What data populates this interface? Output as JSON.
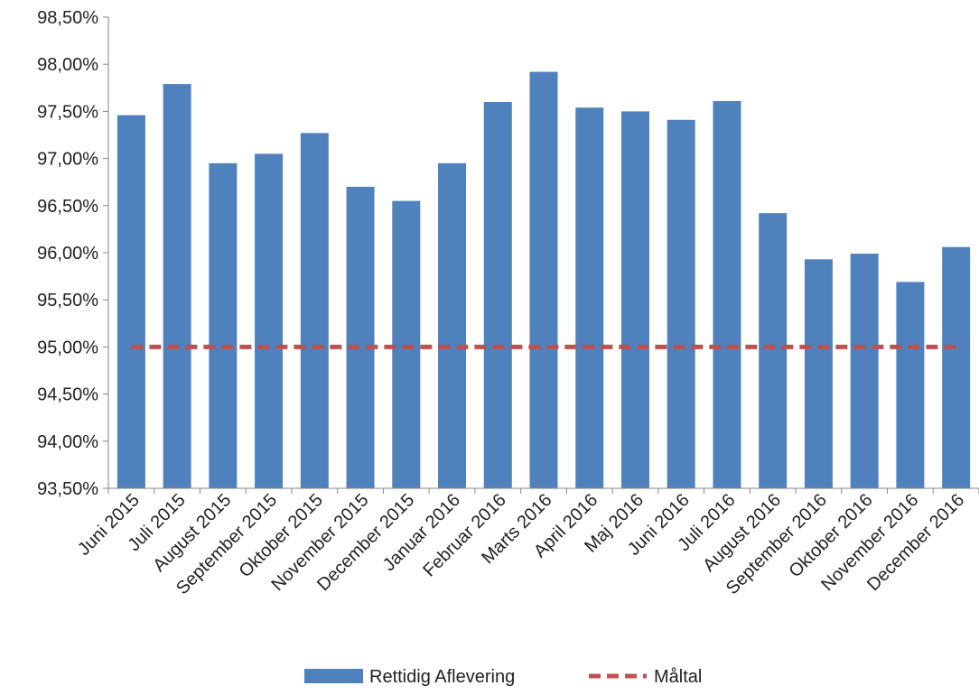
{
  "chart_data": {
    "type": "bar",
    "title": "",
    "xlabel": "",
    "ylabel": "",
    "ylim": [
      0.935,
      0.985
    ],
    "y_ticks": [
      "93,50%",
      "94,00%",
      "94,50%",
      "95,00%",
      "95,50%",
      "96,00%",
      "96,50%",
      "97,00%",
      "97,50%",
      "98,00%",
      "98,50%"
    ],
    "y_tick_values": [
      0.935,
      0.94,
      0.945,
      0.95,
      0.955,
      0.96,
      0.965,
      0.97,
      0.975,
      0.98,
      0.985
    ],
    "grid": false,
    "legend_position": "bottom",
    "categories": [
      "Juni 2015",
      "Juli 2015",
      "August 2015",
      "September 2015",
      "Oktober 2015",
      "November 2015",
      "December 2015",
      "Januar 2016",
      "Februar 2016",
      "Marts 2016",
      "April 2016",
      "Maj 2016",
      "Juni 2016",
      "Juli 2016",
      "August 2016",
      "September 2016",
      "Oktober 2016",
      "November 2016",
      "December 2016"
    ],
    "series": [
      {
        "name": "Rettidig Aflevering",
        "kind": "bar",
        "color": "#4f81bd",
        "values": [
          0.9746,
          0.9779,
          0.9695,
          0.9705,
          0.9727,
          0.967,
          0.9655,
          0.9695,
          0.976,
          0.9792,
          0.9754,
          0.975,
          0.9741,
          0.9761,
          0.9642,
          0.9593,
          0.9599,
          0.9569,
          0.9606
        ]
      },
      {
        "name": "Måltal",
        "kind": "dashed-line",
        "color": "#c0504d",
        "values": [
          0.95,
          0.95,
          0.95,
          0.95,
          0.95,
          0.95,
          0.95,
          0.95,
          0.95,
          0.95,
          0.95,
          0.95,
          0.95,
          0.95,
          0.95,
          0.95,
          0.95,
          0.95,
          0.95
        ]
      }
    ]
  }
}
